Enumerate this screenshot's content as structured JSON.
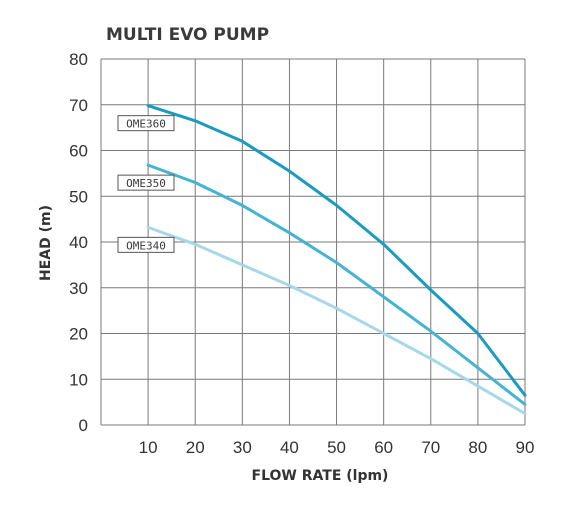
{
  "chart_data": {
    "type": "line",
    "title": "MULTI EVO PUMP",
    "xlabel": "FLOW RATE (lpm)",
    "ylabel": "HEAD (m)",
    "xlim": [
      0,
      90
    ],
    "ylim": [
      0,
      80
    ],
    "x_ticks": [
      10,
      20,
      30,
      40,
      50,
      60,
      70,
      80,
      90
    ],
    "y_ticks": [
      0,
      10,
      20,
      30,
      40,
      50,
      60,
      70,
      80
    ],
    "grid": true,
    "legend": "inline labels at left of each curve",
    "series": [
      {
        "name": "OME360",
        "color": "#1a9bbf",
        "points": [
          [
            10,
            69.8
          ],
          [
            20,
            66.5
          ],
          [
            30,
            62
          ],
          [
            40,
            55.5
          ],
          [
            50,
            48
          ],
          [
            60,
            39.5
          ],
          [
            70,
            29.5
          ],
          [
            80,
            20
          ],
          [
            90,
            6.5
          ]
        ]
      },
      {
        "name": "OME350",
        "color": "#45b3d2",
        "points": [
          [
            10,
            56.8
          ],
          [
            20,
            53
          ],
          [
            30,
            48
          ],
          [
            40,
            42
          ],
          [
            50,
            35.5
          ],
          [
            60,
            28
          ],
          [
            70,
            20.5
          ],
          [
            80,
            12.5
          ],
          [
            90,
            4.5
          ]
        ]
      },
      {
        "name": "OME340",
        "color": "#a7d8e9",
        "points": [
          [
            10,
            43.2
          ],
          [
            20,
            39.5
          ],
          [
            30,
            35
          ],
          [
            40,
            30.5
          ],
          [
            50,
            25.5
          ],
          [
            60,
            20
          ],
          [
            70,
            14.5
          ],
          [
            80,
            8.5
          ],
          [
            90,
            2.5
          ]
        ]
      }
    ]
  }
}
